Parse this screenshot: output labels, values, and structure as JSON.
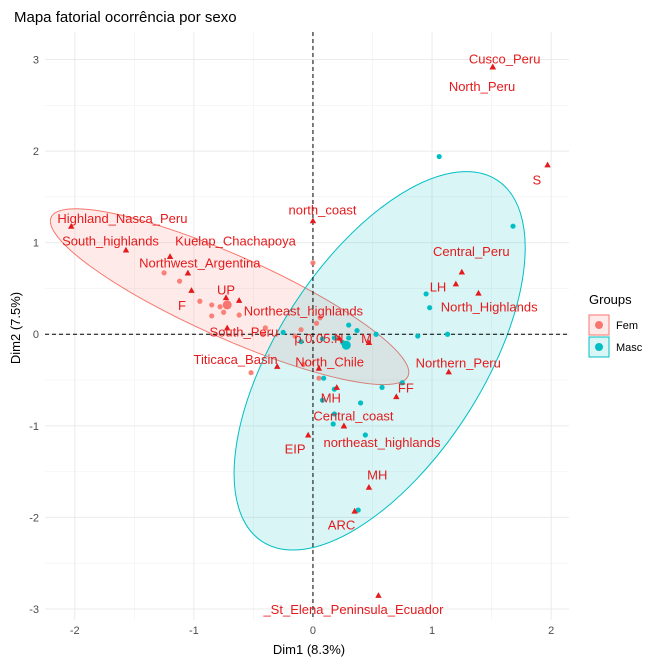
{
  "chart_data": {
    "type": "scatter",
    "title": "Mapa fatorial ocorrência por sexo",
    "xlabel": "Dim1 (8.3%)",
    "ylabel": "Dim2 (7.5%)",
    "xlim": [
      -2.25,
      2.15
    ],
    "ylim": [
      -3.12,
      3.3
    ],
    "xticks": [
      -2,
      -1,
      0,
      1,
      2
    ],
    "yticks": [
      -3,
      -2,
      -1,
      0,
      1,
      2,
      3
    ],
    "grid": true,
    "legend": {
      "title": "Groups",
      "placement": "right"
    },
    "colors": {
      "variables": "#e41a1c",
      "fem": "#f8766d",
      "masc": "#00bfc4"
    },
    "variables": [
      {
        "label": "Cusco_Peru",
        "x": 1.51,
        "y": 2.92,
        "lx": 1.61,
        "ly": 3.0
      },
      {
        "label": "North_Peru",
        "x": 1.51,
        "y": 2.92,
        "lx": 1.42,
        "ly": 2.7
      },
      {
        "label": "S",
        "x": 1.97,
        "y": 1.85,
        "lx": 1.88,
        "ly": 1.68
      },
      {
        "label": "Highland_Nasca_Peru",
        "x": -2.03,
        "y": 1.18,
        "lx": -1.6,
        "ly": 1.26
      },
      {
        "label": "South_highlands",
        "x": -1.57,
        "y": 0.92,
        "lx": -1.7,
        "ly": 1.01
      },
      {
        "label": "north_coast",
        "x": 0.0,
        "y": 1.24,
        "lx": 0.08,
        "ly": 1.35
      },
      {
        "label": "Kuelap_Chachapoya",
        "x": -1.2,
        "y": 0.85,
        "lx": -0.65,
        "ly": 1.01
      },
      {
        "label": "Northwest_Argentina",
        "x": -1.05,
        "y": 0.67,
        "lx": -0.95,
        "ly": 0.77
      },
      {
        "label": "Central_Peru",
        "x": 1.25,
        "y": 0.68,
        "lx": 1.33,
        "ly": 0.9
      },
      {
        "label": "LH",
        "x": 1.2,
        "y": 0.55,
        "lx": 1.05,
        "ly": 0.51
      },
      {
        "label": "North_Highlands",
        "x": 1.39,
        "y": 0.45,
        "lx": 1.48,
        "ly": 0.29
      },
      {
        "label": "UP",
        "x": -0.73,
        "y": 0.4,
        "lx": -0.73,
        "ly": 0.48
      },
      {
        "label": "F",
        "x": -1.02,
        "y": 0.48,
        "lx": -1.1,
        "ly": 0.31
      },
      {
        "label": "Northeast_highlands",
        "x": -0.62,
        "y": 0.37,
        "lx": -0.08,
        "ly": 0.25
      },
      {
        "label": "South_Peru",
        "x": -0.72,
        "y": 0.07,
        "lx": -0.58,
        "ly": 0.02
      },
      {
        "label": "p.0.05.N",
        "x": 0.22,
        "y": -0.04,
        "lx": 0.05,
        "ly": -0.05
      },
      {
        "label": "M",
        "x": 0.47,
        "y": -0.09,
        "lx": 0.45,
        "ly": -0.05
      },
      {
        "label": "Titicaca_Basin",
        "x": -0.3,
        "y": -0.35,
        "lx": -0.65,
        "ly": -0.28
      },
      {
        "label": "North_Chile",
        "x": 0.05,
        "y": -0.37,
        "lx": 0.14,
        "ly": -0.31
      },
      {
        "label": "Northern_Peru",
        "x": 1.14,
        "y": -0.41,
        "lx": 1.22,
        "ly": -0.32
      },
      {
        "label": "FF",
        "x": 0.7,
        "y": -0.68,
        "lx": 0.78,
        "ly": -0.59
      },
      {
        "label": "MH",
        "x": 0.2,
        "y": -0.58,
        "lx": 0.15,
        "ly": -0.7
      },
      {
        "label": "Central_coast",
        "x": 0.26,
        "y": -1.0,
        "lx": 0.34,
        "ly": -0.9
      },
      {
        "label": "northeast_highlands",
        "x": 0.26,
        "y": -1.0,
        "lx": 0.58,
        "ly": -1.19
      },
      {
        "label": "EIP",
        "x": -0.04,
        "y": -1.1,
        "lx": -0.15,
        "ly": -1.26
      },
      {
        "label": "MH",
        "x": 0.47,
        "y": -1.67,
        "lx": 0.54,
        "ly": -1.54
      },
      {
        "label": "ARC",
        "x": 0.35,
        "y": -1.93,
        "lx": 0.24,
        "ly": -2.09
      },
      {
        "label": "_St_Elena_Peninsula_Ecuador",
        "x": 0.55,
        "y": -2.85,
        "lx": 0.34,
        "ly": -3.01
      }
    ],
    "individuals": {
      "fem": [
        [
          -1.25,
          0.67
        ],
        [
          -1.12,
          0.58
        ],
        [
          -0.95,
          0.36
        ],
        [
          -0.85,
          0.32
        ],
        [
          -0.78,
          0.3
        ],
        [
          -0.85,
          0.2
        ],
        [
          -0.75,
          0.24
        ],
        [
          -0.62,
          0.21
        ],
        [
          -0.4,
          0.07
        ],
        [
          -0.42,
          0.0
        ],
        [
          -0.15,
          -0.02
        ],
        [
          -0.1,
          0.05
        ],
        [
          0.03,
          0.12
        ],
        [
          0.06,
          0.18
        ],
        [
          0.0,
          0.78
        ],
        [
          -0.52,
          -0.42
        ],
        [
          -0.08,
          -0.33
        ],
        [
          0.05,
          -0.48
        ]
      ],
      "masc": [
        [
          1.06,
          1.94
        ],
        [
          1.68,
          1.18
        ],
        [
          0.95,
          0.44
        ],
        [
          0.98,
          0.29
        ],
        [
          1.13,
          0.0
        ],
        [
          0.88,
          -0.02
        ],
        [
          0.53,
          0.0
        ],
        [
          0.37,
          0.04
        ],
        [
          0.3,
          0.1
        ],
        [
          0.3,
          -0.04
        ],
        [
          0.25,
          -0.09
        ],
        [
          0.18,
          -0.04
        ],
        [
          0.08,
          -0.05
        ],
        [
          -0.1,
          -0.08
        ],
        [
          -0.25,
          0.02
        ],
        [
          0.09,
          -0.48
        ],
        [
          0.18,
          -0.6
        ],
        [
          0.08,
          -0.72
        ],
        [
          0.4,
          -0.75
        ],
        [
          0.58,
          -0.58
        ],
        [
          0.75,
          -0.53
        ],
        [
          0.18,
          -0.87
        ],
        [
          0.17,
          -0.98
        ],
        [
          0.44,
          -1.1
        ],
        [
          0.38,
          -1.92
        ]
      ],
      "fem_center": [
        -0.72,
        0.32
      ],
      "masc_center": [
        0.28,
        -0.12
      ]
    },
    "ellipses": {
      "fem": {
        "cx": -0.7,
        "cy": 0.41,
        "rx": 1.64,
        "ry": 0.45,
        "angle_deg": -24
      },
      "masc": {
        "cx": 0.56,
        "cy": -0.29,
        "rx": 1.81,
        "ry": 1.12,
        "angle_deg": 57
      }
    },
    "legend_items": [
      {
        "key": "fem",
        "label": "Fem"
      },
      {
        "key": "masc",
        "label": "Masc"
      }
    ]
  }
}
